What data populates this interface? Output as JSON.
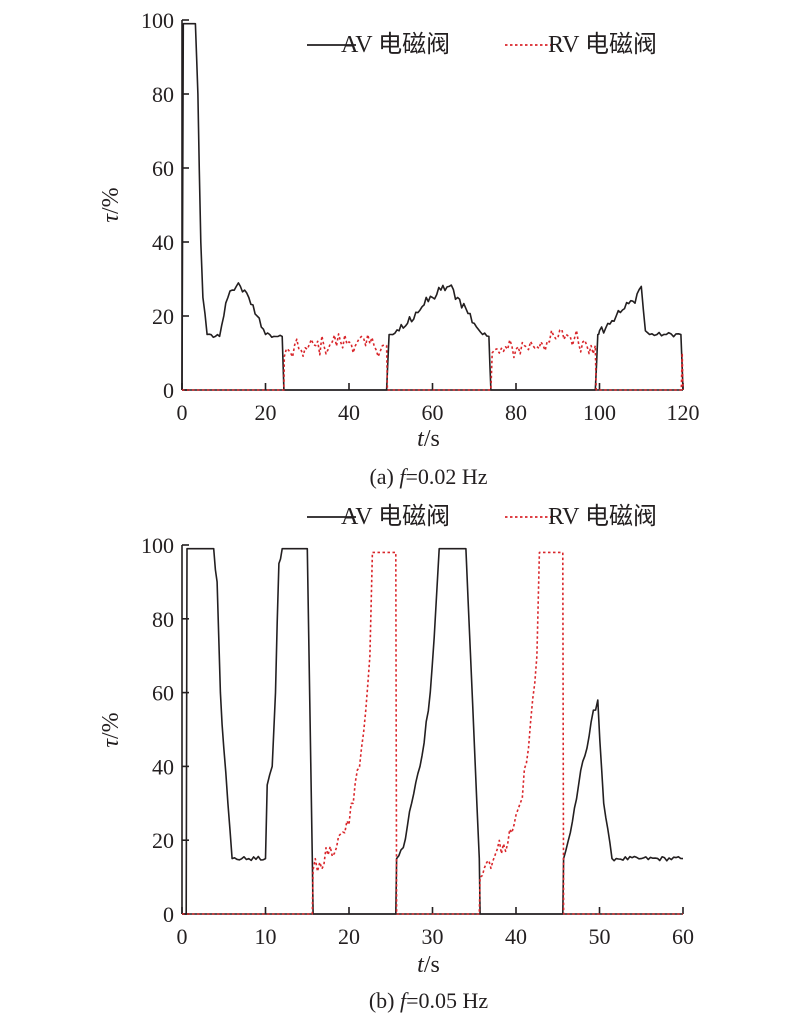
{
  "colors": {
    "av": "#231f20",
    "rv": "#d9262b",
    "axis": "#231f20"
  },
  "chart_data": [
    {
      "type": "line",
      "caption_prefix": "(a) ",
      "caption_var": "f",
      "caption_suffix": "=0.02 Hz",
      "xlabel_var": "t",
      "xlabel_unit": "/s",
      "ylabel_var": "τ",
      "ylabel_unit": "/%",
      "xlim": [
        0,
        120
      ],
      "ylim": [
        0,
        100
      ],
      "xticks": [
        0,
        20,
        40,
        60,
        80,
        100,
        120
      ],
      "yticks": [
        0,
        20,
        40,
        60,
        80,
        100
      ],
      "grid": false,
      "legend_position": "top-right",
      "series": [
        {
          "name": "AV 电磁阀",
          "style": "solid",
          "x": [
            0,
            0.3,
            0.8,
            3.2,
            3.8,
            4.5,
            5,
            6,
            8,
            9,
            10,
            11,
            12,
            13,
            14,
            15,
            16,
            17,
            18,
            19,
            20,
            21,
            22,
            23,
            24,
            24.4,
            25,
            49,
            49.6,
            50,
            52,
            54,
            56,
            58,
            60,
            62,
            64,
            66,
            68,
            70,
            72,
            73.5,
            74,
            75,
            99,
            99.6,
            100,
            102,
            104,
            106,
            108,
            109,
            110,
            111,
            112,
            116,
            119.5,
            120
          ],
          "y": [
            0,
            99,
            99,
            99,
            80,
            40,
            25,
            15,
            14.5,
            14.5,
            20,
            25,
            27,
            28,
            28,
            27,
            25,
            23,
            20,
            17,
            15,
            15,
            14.5,
            14.5,
            14.5,
            0,
            0,
            0,
            15,
            15,
            16,
            18,
            21,
            23,
            25,
            27,
            28,
            25,
            22,
            18,
            15,
            14.5,
            0,
            0,
            0,
            15,
            16,
            18,
            20,
            22,
            24,
            26,
            28,
            16,
            15,
            15,
            15,
            0
          ]
        },
        {
          "name": "RV 电磁阀",
          "style": "dotted",
          "x": [
            0,
            24.4,
            24.5,
            26,
            28,
            30,
            32,
            34,
            36,
            38,
            40,
            42,
            44,
            46,
            48,
            49,
            49.2,
            74,
            74.3,
            76,
            78,
            80,
            82,
            84,
            86,
            88,
            90,
            92,
            94,
            96,
            98,
            99,
            99.2,
            119.6,
            119.8,
            120
          ],
          "y": [
            0,
            0,
            9,
            10,
            11,
            11,
            12,
            12,
            13,
            13,
            13,
            13,
            12,
            12,
            12,
            12,
            0,
            0,
            10,
            10,
            11,
            11,
            12,
            12,
            13,
            13,
            14,
            15,
            14,
            13,
            12,
            12,
            0,
            0,
            10,
            0
          ]
        }
      ]
    },
    {
      "type": "line",
      "caption_prefix": "(b) ",
      "caption_var": "f",
      "caption_suffix": "=0.05 Hz",
      "xlabel_var": "t",
      "xlabel_unit": "/s",
      "ylabel_var": "τ",
      "ylabel_unit": "/%",
      "xlim": [
        0,
        60
      ],
      "ylim": [
        0,
        100
      ],
      "xticks": [
        0,
        10,
        20,
        30,
        40,
        50,
        60
      ],
      "yticks": [
        0,
        20,
        40,
        60,
        80,
        100
      ],
      "grid": false,
      "legend_position": "top",
      "series": [
        {
          "name": "AV 电磁阀",
          "style": "solid",
          "x": [
            0,
            0.5,
            0.6,
            3.8,
            4.2,
            4.6,
            5,
            5.5,
            6,
            8,
            10,
            10.2,
            10.8,
            11.2,
            11.6,
            12,
            15,
            15.6,
            15.7,
            25.6,
            25.7,
            26.5,
            27.5,
            28.5,
            29.5,
            30.2,
            30.8,
            34,
            35.6,
            35.7,
            45.6,
            45.7,
            46.5,
            47.5,
            48.5,
            49,
            49.8,
            50.5,
            51.5,
            52,
            55,
            60
          ],
          "y": [
            0,
            0,
            99,
            99,
            90,
            60,
            45,
            30,
            15,
            15,
            15,
            35,
            40,
            60,
            95,
            99,
            99,
            15,
            0,
            0,
            15,
            18,
            30,
            40,
            55,
            75,
            99,
            99,
            15,
            0,
            0,
            15,
            22,
            35,
            45,
            52,
            58,
            30,
            15,
            15,
            15,
            15
          ]
        },
        {
          "name": "RV 电磁阀",
          "style": "dotted",
          "x": [
            0,
            15.6,
            15.7,
            16.5,
            17.5,
            18.5,
            19.5,
            20.5,
            21.5,
            22.5,
            22.8,
            23.2,
            25.6,
            25.7,
            35.6,
            35.7,
            36.5,
            37.5,
            38.5,
            39.5,
            40.5,
            41.5,
            42.5,
            42.8,
            43.2,
            45.6,
            45.7,
            60
          ],
          "y": [
            0,
            0,
            12,
            14,
            16,
            18,
            22,
            30,
            45,
            70,
            98,
            98,
            98,
            0,
            0,
            10,
            14,
            16,
            19,
            22,
            30,
            45,
            70,
            98,
            98,
            98,
            0,
            0
          ]
        }
      ]
    }
  ]
}
